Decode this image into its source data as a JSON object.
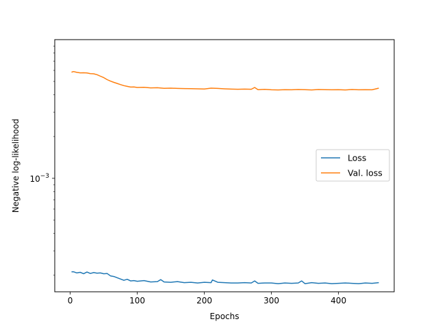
{
  "chart_data": {
    "type": "line",
    "xlabel": "Epochs",
    "ylabel": "Negative log-likelihood",
    "yscale": "log",
    "xlim": [
      -23,
      483
    ],
    "ylim": [
      0.000152,
      0.01
    ],
    "x_ticks": [
      0,
      100,
      200,
      300,
      400
    ],
    "y_ticks": [
      {
        "value": 0.001,
        "base": "10",
        "exponent": "−3"
      }
    ],
    "grid": false,
    "legend_position": "center-right",
    "series": [
      {
        "name": "Loss",
        "color": "#1f77b4",
        "x": [
          2,
          5,
          10,
          15,
          20,
          25,
          30,
          35,
          40,
          45,
          50,
          55,
          60,
          65,
          70,
          75,
          80,
          85,
          90,
          95,
          100,
          110,
          120,
          130,
          135,
          140,
          150,
          160,
          170,
          180,
          190,
          200,
          210,
          212,
          220,
          230,
          240,
          250,
          260,
          270,
          275,
          280,
          290,
          300,
          310,
          320,
          330,
          340,
          345,
          350,
          360,
          370,
          380,
          390,
          400,
          410,
          420,
          430,
          440,
          450,
          460
        ],
        "y": [
          0.000212,
          0.000212,
          0.000208,
          0.00021,
          0.000205,
          0.000211,
          0.000206,
          0.000209,
          0.000207,
          0.000208,
          0.000205,
          0.000206,
          0.000198,
          0.000196,
          0.000192,
          0.000188,
          0.000184,
          0.000187,
          0.000182,
          0.000183,
          0.000181,
          0.000183,
          0.000179,
          0.00018,
          0.000186,
          0.000179,
          0.000178,
          0.00018,
          0.000177,
          0.000178,
          0.000176,
          0.000178,
          0.000177,
          0.000185,
          0.000178,
          0.000177,
          0.000176,
          0.000176,
          0.000177,
          0.000176,
          0.000182,
          0.000175,
          0.000176,
          0.000176,
          0.000174,
          0.000176,
          0.000175,
          0.000176,
          0.000182,
          0.000174,
          0.000177,
          0.000175,
          0.000176,
          0.000174,
          0.000175,
          0.000176,
          0.000175,
          0.000174,
          0.000176,
          0.000175,
          0.000177
        ]
      },
      {
        "name": "Val. loss",
        "color": "#ff7f0e",
        "x": [
          2,
          5,
          10,
          15,
          20,
          25,
          30,
          35,
          40,
          45,
          50,
          55,
          60,
          65,
          70,
          75,
          80,
          85,
          90,
          95,
          100,
          110,
          120,
          130,
          140,
          150,
          160,
          170,
          180,
          190,
          200,
          210,
          220,
          230,
          240,
          250,
          260,
          270,
          275,
          280,
          290,
          300,
          310,
          320,
          330,
          340,
          350,
          360,
          370,
          380,
          390,
          400,
          410,
          420,
          430,
          440,
          450,
          460
        ],
        "y": [
          0.00583,
          0.00589,
          0.00581,
          0.00576,
          0.00577,
          0.00575,
          0.00569,
          0.00567,
          0.00559,
          0.00545,
          0.00532,
          0.00515,
          0.00502,
          0.00492,
          0.00483,
          0.00474,
          0.00466,
          0.0046,
          0.00455,
          0.00456,
          0.00452,
          0.00453,
          0.00449,
          0.0045,
          0.00446,
          0.00447,
          0.00445,
          0.00444,
          0.00443,
          0.00442,
          0.00441,
          0.00447,
          0.00445,
          0.00442,
          0.0044,
          0.00439,
          0.0044,
          0.00439,
          0.00452,
          0.00436,
          0.00438,
          0.00435,
          0.00434,
          0.00436,
          0.00435,
          0.00437,
          0.00436,
          0.00434,
          0.00437,
          0.00436,
          0.00435,
          0.00436,
          0.00434,
          0.00437,
          0.00435,
          0.00436,
          0.00435,
          0.00447
        ]
      }
    ]
  }
}
